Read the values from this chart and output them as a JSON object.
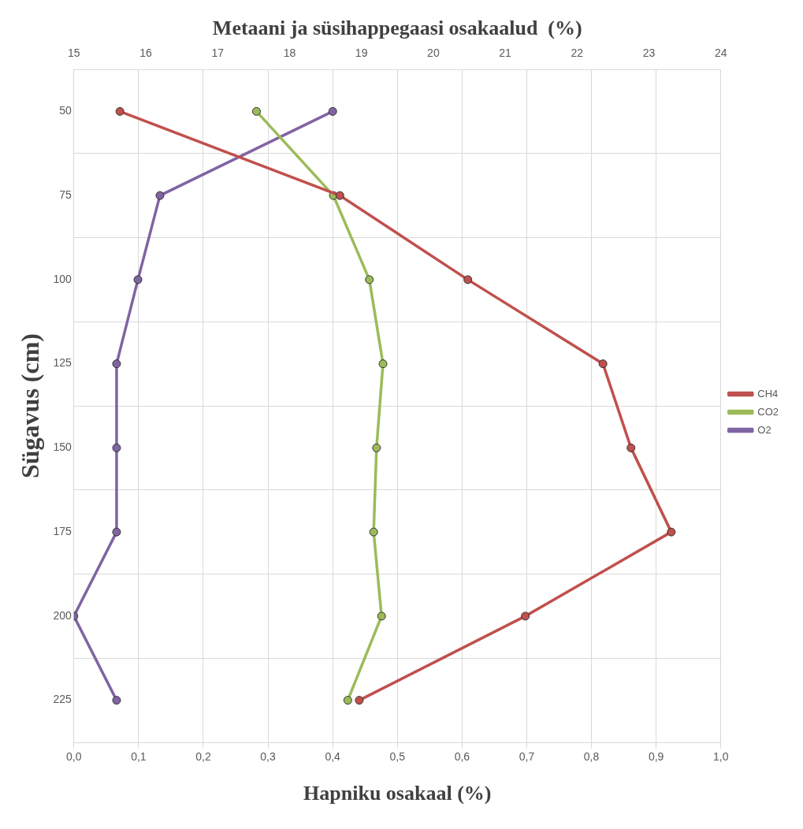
{
  "chart_data": {
    "type": "line",
    "orientation": "horizontal",
    "ylabel": "Sügavus (cm)",
    "xlabel": "Hapniku osakaal (%)",
    "x2label": "Metaani ja süsihappegaasi osakaalud  (%)",
    "categories": [
      "50",
      "75",
      "100",
      "125",
      "150",
      "175",
      "200",
      "225"
    ],
    "xlim": [
      0,
      1
    ],
    "xticks": [
      {
        "value": 0,
        "label": "0,0"
      },
      {
        "value": 0.1,
        "label": "0,1"
      },
      {
        "value": 0.2,
        "label": "0,2"
      },
      {
        "value": 0.3,
        "label": "0,3"
      },
      {
        "value": 0.4,
        "label": "0,4"
      },
      {
        "value": 0.5,
        "label": "0,5"
      },
      {
        "value": 0.6,
        "label": "0,6"
      },
      {
        "value": 0.7,
        "label": "0,7"
      },
      {
        "value": 0.8,
        "label": "0,8"
      },
      {
        "value": 0.9,
        "label": "0,9"
      },
      {
        "value": 1,
        "label": "1,0"
      }
    ],
    "x2lim": [
      15,
      24
    ],
    "x2ticks": [
      15,
      16,
      17,
      18,
      19,
      20,
      21,
      22,
      23,
      24
    ],
    "series": [
      {
        "name": "CH4",
        "color": "#c0504d",
        "axis": "x2",
        "values": [
          15.64,
          18.7,
          20.48,
          22.36,
          22.75,
          23.31,
          21.28,
          18.97
        ]
      },
      {
        "name": "CO2",
        "color": "#9bbb59",
        "axis": "x2",
        "values": [
          17.54,
          18.61,
          19.11,
          19.3,
          19.21,
          19.17,
          19.28,
          18.81
        ]
      },
      {
        "name": "O2",
        "color": "#8064a2",
        "values": [
          0.4,
          0.133,
          0.099,
          0.066,
          0.066,
          0.066,
          0,
          0.066
        ]
      }
    ],
    "grid": true,
    "legend": "right",
    "marker": "circle",
    "line_style": "solid"
  }
}
